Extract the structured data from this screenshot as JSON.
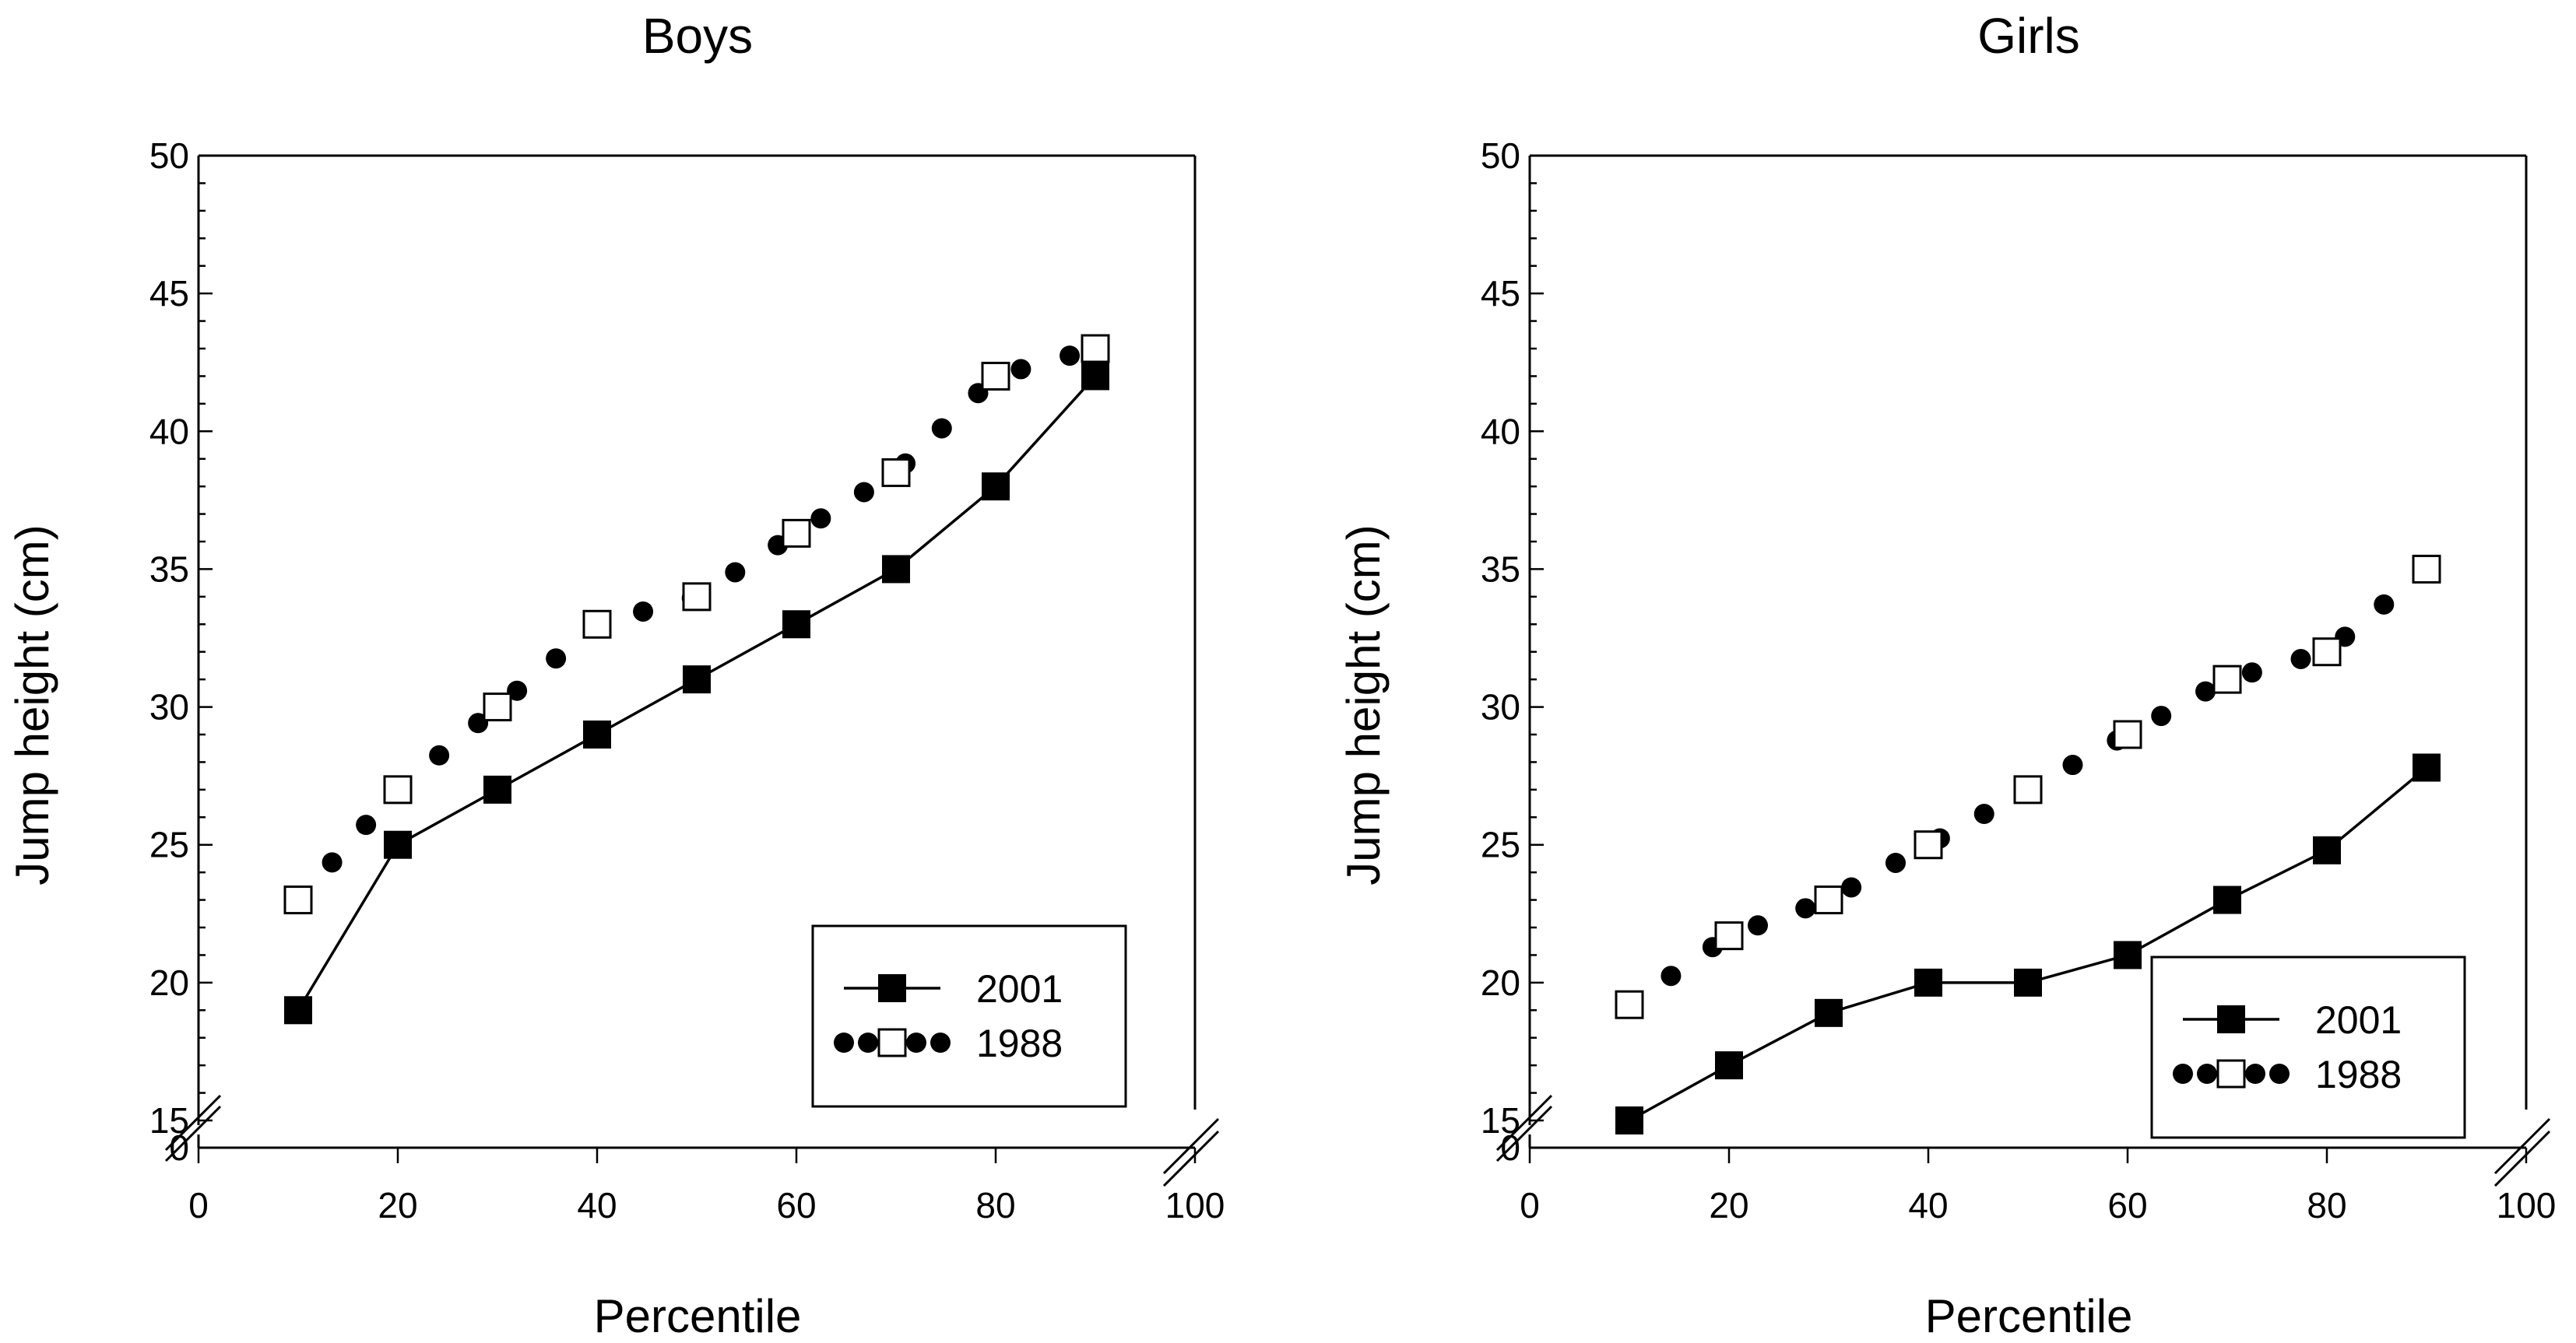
{
  "chart_data": [
    {
      "type": "line",
      "title": "Boys",
      "xlabel": "Percentile",
      "ylabel": "Jump height (cm)",
      "xlim": [
        0,
        100
      ],
      "ylim": [
        15,
        50
      ],
      "axis_break_label": "0",
      "xticks": [
        0,
        20,
        40,
        60,
        80,
        100
      ],
      "yticks": [
        15,
        20,
        25,
        30,
        35,
        40,
        45,
        50
      ],
      "legend_position": "bottom-right",
      "x": [
        10,
        20,
        30,
        40,
        50,
        60,
        70,
        80,
        90
      ],
      "series": [
        {
          "name": "2001",
          "style": "solid-line-filled-square",
          "values": [
            19,
            25,
            27,
            29,
            31,
            33,
            35,
            38,
            42
          ]
        },
        {
          "name": "1988",
          "style": "dotted-line-open-square",
          "values": [
            23,
            27,
            30,
            33,
            34,
            36.3,
            38.5,
            42,
            43
          ]
        }
      ]
    },
    {
      "type": "line",
      "title": "Girls",
      "xlabel": "Percentile",
      "ylabel": "Jump height (cm)",
      "xlim": [
        0,
        100
      ],
      "ylim": [
        15,
        50
      ],
      "axis_break_label": "0",
      "xticks": [
        0,
        20,
        40,
        60,
        80,
        100
      ],
      "yticks": [
        15,
        20,
        25,
        30,
        35,
        40,
        45,
        50
      ],
      "legend_position": "bottom-right",
      "x": [
        10,
        20,
        30,
        40,
        50,
        60,
        70,
        80,
        90
      ],
      "series": [
        {
          "name": "2001",
          "style": "solid-line-filled-square",
          "values": [
            15,
            17,
            18.9,
            20,
            20,
            21,
            23,
            24.8,
            27.8
          ]
        },
        {
          "name": "1988",
          "style": "dotted-line-open-square",
          "values": [
            19.2,
            21.7,
            23,
            25,
            27,
            29,
            31,
            32,
            35
          ]
        }
      ]
    }
  ]
}
